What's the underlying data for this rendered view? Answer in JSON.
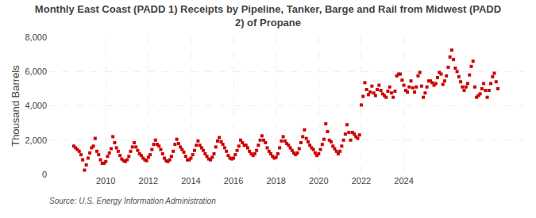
{
  "chart_data": {
    "type": "scatter",
    "title": "Monthly East Coast (PADD 1) Receipts by Pipeline, Tanker, Barge and Rail from Midwest (PADD\n2) of Propane",
    "ylabel": "Thousand Barrels",
    "annotations": [
      "Source: U.S. Energy Information Administration"
    ],
    "color": "#cc0000",
    "marker": "square",
    "grid": true,
    "ylim": [
      0,
      8000
    ],
    "yticks": [
      0,
      {
        "value": 2000,
        "label": "2,000"
      },
      {
        "value": 4000,
        "label": "4,000"
      },
      {
        "value": 6000,
        "label": "6,000"
      },
      {
        "value": 8000,
        "label": "8,000"
      }
    ],
    "categories": [
      null,
      null,
      null,
      null,
      null,
      null,
      null,
      null,
      null,
      null,
      null,
      null,
      null,
      null,
      null,
      null,
      null,
      null,
      "2010",
      null,
      null,
      null,
      null,
      null,
      null,
      null,
      null,
      null,
      null,
      null,
      null,
      null,
      null,
      null,
      null,
      null,
      null,
      null,
      null,
      null,
      null,
      null,
      "2012",
      null,
      null,
      null,
      null,
      null,
      null,
      null,
      null,
      null,
      null,
      null,
      null,
      null,
      null,
      null,
      null,
      null,
      null,
      null,
      null,
      null,
      null,
      null,
      "2014",
      null,
      null,
      null,
      null,
      null,
      null,
      null,
      null,
      null,
      null,
      null,
      null,
      null,
      null,
      null,
      null,
      null,
      null,
      null,
      null,
      null,
      null,
      null,
      "2016",
      null,
      null,
      null,
      null,
      null,
      null,
      null,
      null,
      null,
      null,
      null,
      null,
      null,
      null,
      null,
      null,
      null,
      null,
      null,
      null,
      null,
      null,
      null,
      "2018",
      null,
      null,
      null,
      null,
      null,
      null,
      null,
      null,
      null,
      null,
      null,
      null,
      null,
      null,
      null,
      null,
      null,
      null,
      null,
      null,
      null,
      null,
      null,
      "2020",
      null,
      null,
      null,
      null,
      null,
      null,
      null,
      null,
      null,
      null,
      null,
      null,
      null,
      null,
      null,
      null,
      null,
      null,
      null,
      null,
      null,
      null,
      null,
      "2022",
      null,
      null,
      null,
      null,
      null,
      null,
      null,
      null,
      null,
      null,
      null,
      null,
      null,
      null,
      null,
      null,
      null,
      null,
      null,
      null,
      null,
      null,
      null,
      "2024",
      null,
      null,
      null,
      null,
      null,
      null,
      null,
      null,
      null,
      null,
      null,
      null,
      null,
      null,
      null,
      null,
      null,
      null,
      null,
      null,
      null,
      null,
      null,
      null,
      null,
      null,
      null,
      null,
      null,
      null,
      null,
      null,
      null,
      null,
      null,
      null,
      null,
      null,
      null,
      null,
      null,
      null,
      null,
      null,
      null,
      null,
      null,
      null,
      null,
      null,
      null,
      null,
      null
    ],
    "values": [
      1650,
      1550,
      1450,
      1350,
      1150,
      850,
      250,
      550,
      950,
      1250,
      1550,
      1650,
      2100,
      1350,
      1150,
      850,
      650,
      650,
      750,
      1050,
      1250,
      1500,
      2200,
      1850,
      1550,
      1350,
      1100,
      900,
      800,
      750,
      850,
      1050,
      1350,
      1600,
      1850,
      1600,
      1400,
      1200,
      1100,
      950,
      850,
      800,
      1000,
      1150,
      1450,
      1750,
      2000,
      1750,
      1650,
      1450,
      1200,
      950,
      800,
      750,
      850,
      1050,
      1350,
      1750,
      2050,
      1800,
      1600,
      1450,
      1300,
      1050,
      850,
      850,
      950,
      1150,
      1400,
      1700,
      1950,
      1700,
      1550,
      1400,
      1200,
      1050,
      900,
      850,
      1000,
      1200,
      1600,
      1950,
      2150,
      1900,
      1750,
      1550,
      1350,
      1100,
      950,
      900,
      950,
      1150,
      1400,
      1650,
      2000,
      1850,
      1700,
      1700,
      1550,
      1350,
      1200,
      1100,
      1200,
      1400,
      1700,
      2000,
      2250,
      2000,
      1850,
      1550,
      1350,
      1200,
      1050,
      950,
      1000,
      1200,
      1550,
      1950,
      2200,
      1950,
      1800,
      1700,
      1550,
      1400,
      1250,
      1150,
      1250,
      1500,
      1850,
      2200,
      2600,
      2100,
      1900,
      1700,
      1550,
      1450,
      1250,
      1100,
      1200,
      1450,
      1750,
      2050,
      2950,
      2500,
      2000,
      1900,
      1650,
      1500,
      1350,
      1200,
      1350,
      1650,
      2000,
      2350,
      2900,
      2450,
      2000,
      2450,
      2350,
      2200,
      2100,
      2300,
      4050,
      4550,
      5350,
      4950,
      4650,
      4800,
      5150,
      4750,
      4600,
      4950,
      5200,
      4900,
      4700,
      4600,
      4500,
      4850,
      5100,
      4750,
      4500,
      4850,
      5750,
      5850,
      5850,
      5500,
      5200,
      4900,
      4800,
      5100,
      5450,
      5050,
      4800,
      5100,
      5750,
      5950,
      5150,
      4500,
      4750,
      5100,
      5450,
      5450,
      5350,
      5200,
      5300,
      5650,
      5950,
      5850,
      5250,
      5450,
      5750,
      6250,
      6850,
      7250,
      6700,
      6200,
      6000,
      5700,
      5400,
      5100,
      4900,
      5100,
      5300,
      5800,
      6300,
      6600,
      5100,
      4500,
      4600,
      4700,
      5000,
      5300,
      4900,
      4500,
      4900,
      5300,
      5700,
      5900,
      5400,
      5000
    ]
  }
}
